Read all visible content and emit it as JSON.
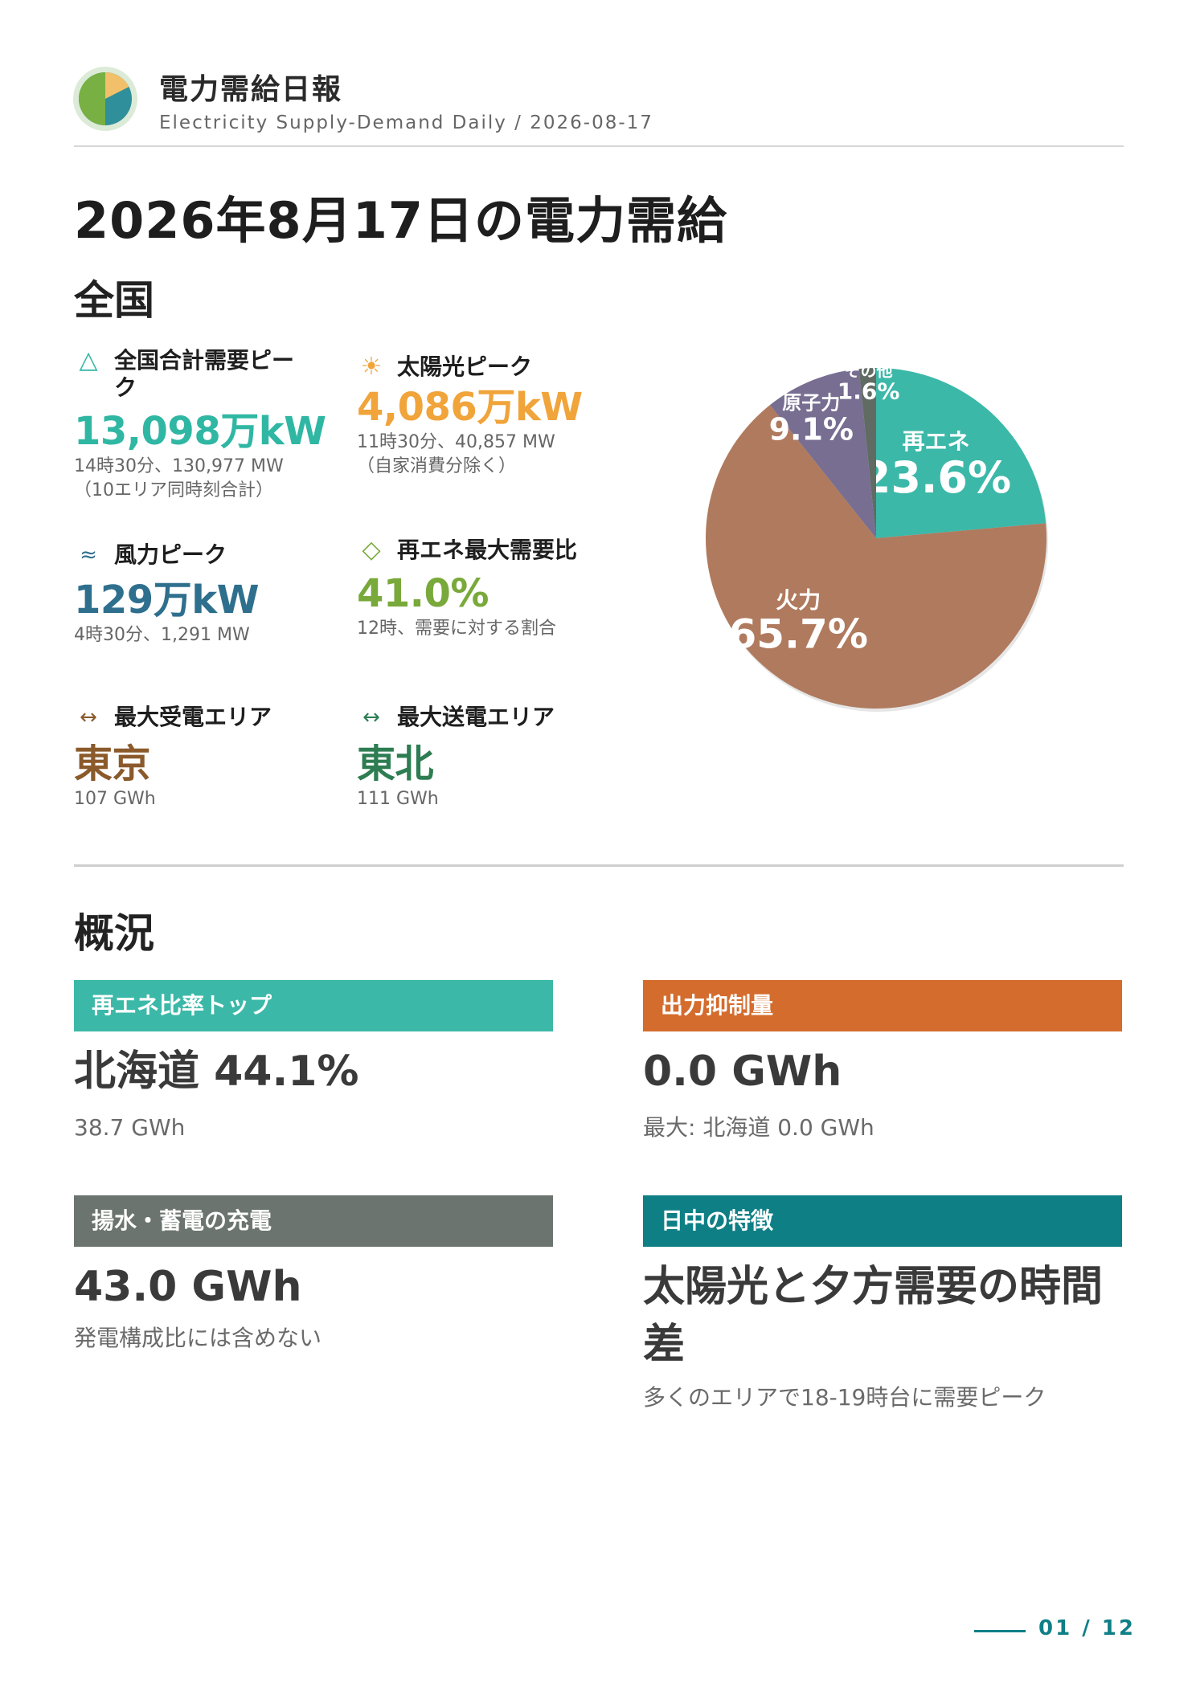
{
  "header": {
    "title": "電力需給日報",
    "subtitle": "Electricity Supply-Demand Daily / 2026-08-17"
  },
  "main_title": "2026年8月17日の電力需給",
  "national": {
    "heading": "全国",
    "metrics": [
      {
        "icon": "triangle-outline-icon",
        "label": "全国合計需要ピーク",
        "value": "13,098万kW",
        "notes": [
          "14時30分、130,977 MW",
          "（10エリア同時刻合計）"
        ],
        "color": "#2fb7a3"
      },
      {
        "icon": "sun-icon",
        "label": "太陽光ピーク",
        "value": "4,086万kW",
        "notes": [
          "11時30分、40,857 MW",
          "（自家消費分除く）"
        ],
        "color": "#f0a43a"
      },
      {
        "icon": "wave-icon",
        "label": "風力ピーク",
        "value": "129万kW",
        "notes": [
          "4時30分、1,291 MW"
        ],
        "color": "#2f6f8e"
      },
      {
        "icon": "diamond-outline-icon",
        "label": "再エネ最大需要比",
        "value": "41.0%",
        "notes": [
          "12時、需要に対する割合"
        ],
        "color": "#79a93a"
      },
      {
        "icon": "double-arrow-icon",
        "label": "最大受電エリア",
        "value": "東京",
        "notes": [
          "107 GWh"
        ],
        "color": "#8a5a2b"
      },
      {
        "icon": "double-arrow-icon",
        "label": "最大送電エリア",
        "value": "東北",
        "notes": [
          "111 GWh"
        ],
        "color": "#2e7d52"
      }
    ]
  },
  "chart_data": {
    "type": "pie",
    "title": "",
    "slices": [
      {
        "label": "再エネ",
        "value": 23.6,
        "display": "23.6%",
        "color": "#3cb8a8"
      },
      {
        "label": "火力",
        "value": 65.7,
        "display": "65.7%",
        "color": "#b07a5e"
      },
      {
        "label": "原子力",
        "value": 9.1,
        "display": "9.1%",
        "color": "#776e91"
      },
      {
        "label": "その他",
        "value": 1.6,
        "display": "1.6%",
        "color": "#5f6b63"
      }
    ]
  },
  "overview": {
    "heading": "概況",
    "cards": [
      {
        "title": "再エネ比率トップ",
        "color": "#3cb8a8",
        "value": "北海道 44.1%",
        "note": "38.7 GWh"
      },
      {
        "title": "出力抑制量",
        "color": "#d46c2e",
        "value": "0.0 GWh",
        "note": "最大: 北海道 0.0 GWh"
      },
      {
        "title": "揚水・蓄電の充電",
        "color": "#6c746f",
        "value": "43.0 GWh",
        "note": "発電構成比には含めない"
      },
      {
        "title": "日中の特徴",
        "color": "#0f7f86",
        "value": "太陽光と夕方需要の時間差",
        "note": "多くのエリアで18-19時台に需要ピーク"
      }
    ]
  },
  "footer": {
    "page": "01 / 12"
  }
}
